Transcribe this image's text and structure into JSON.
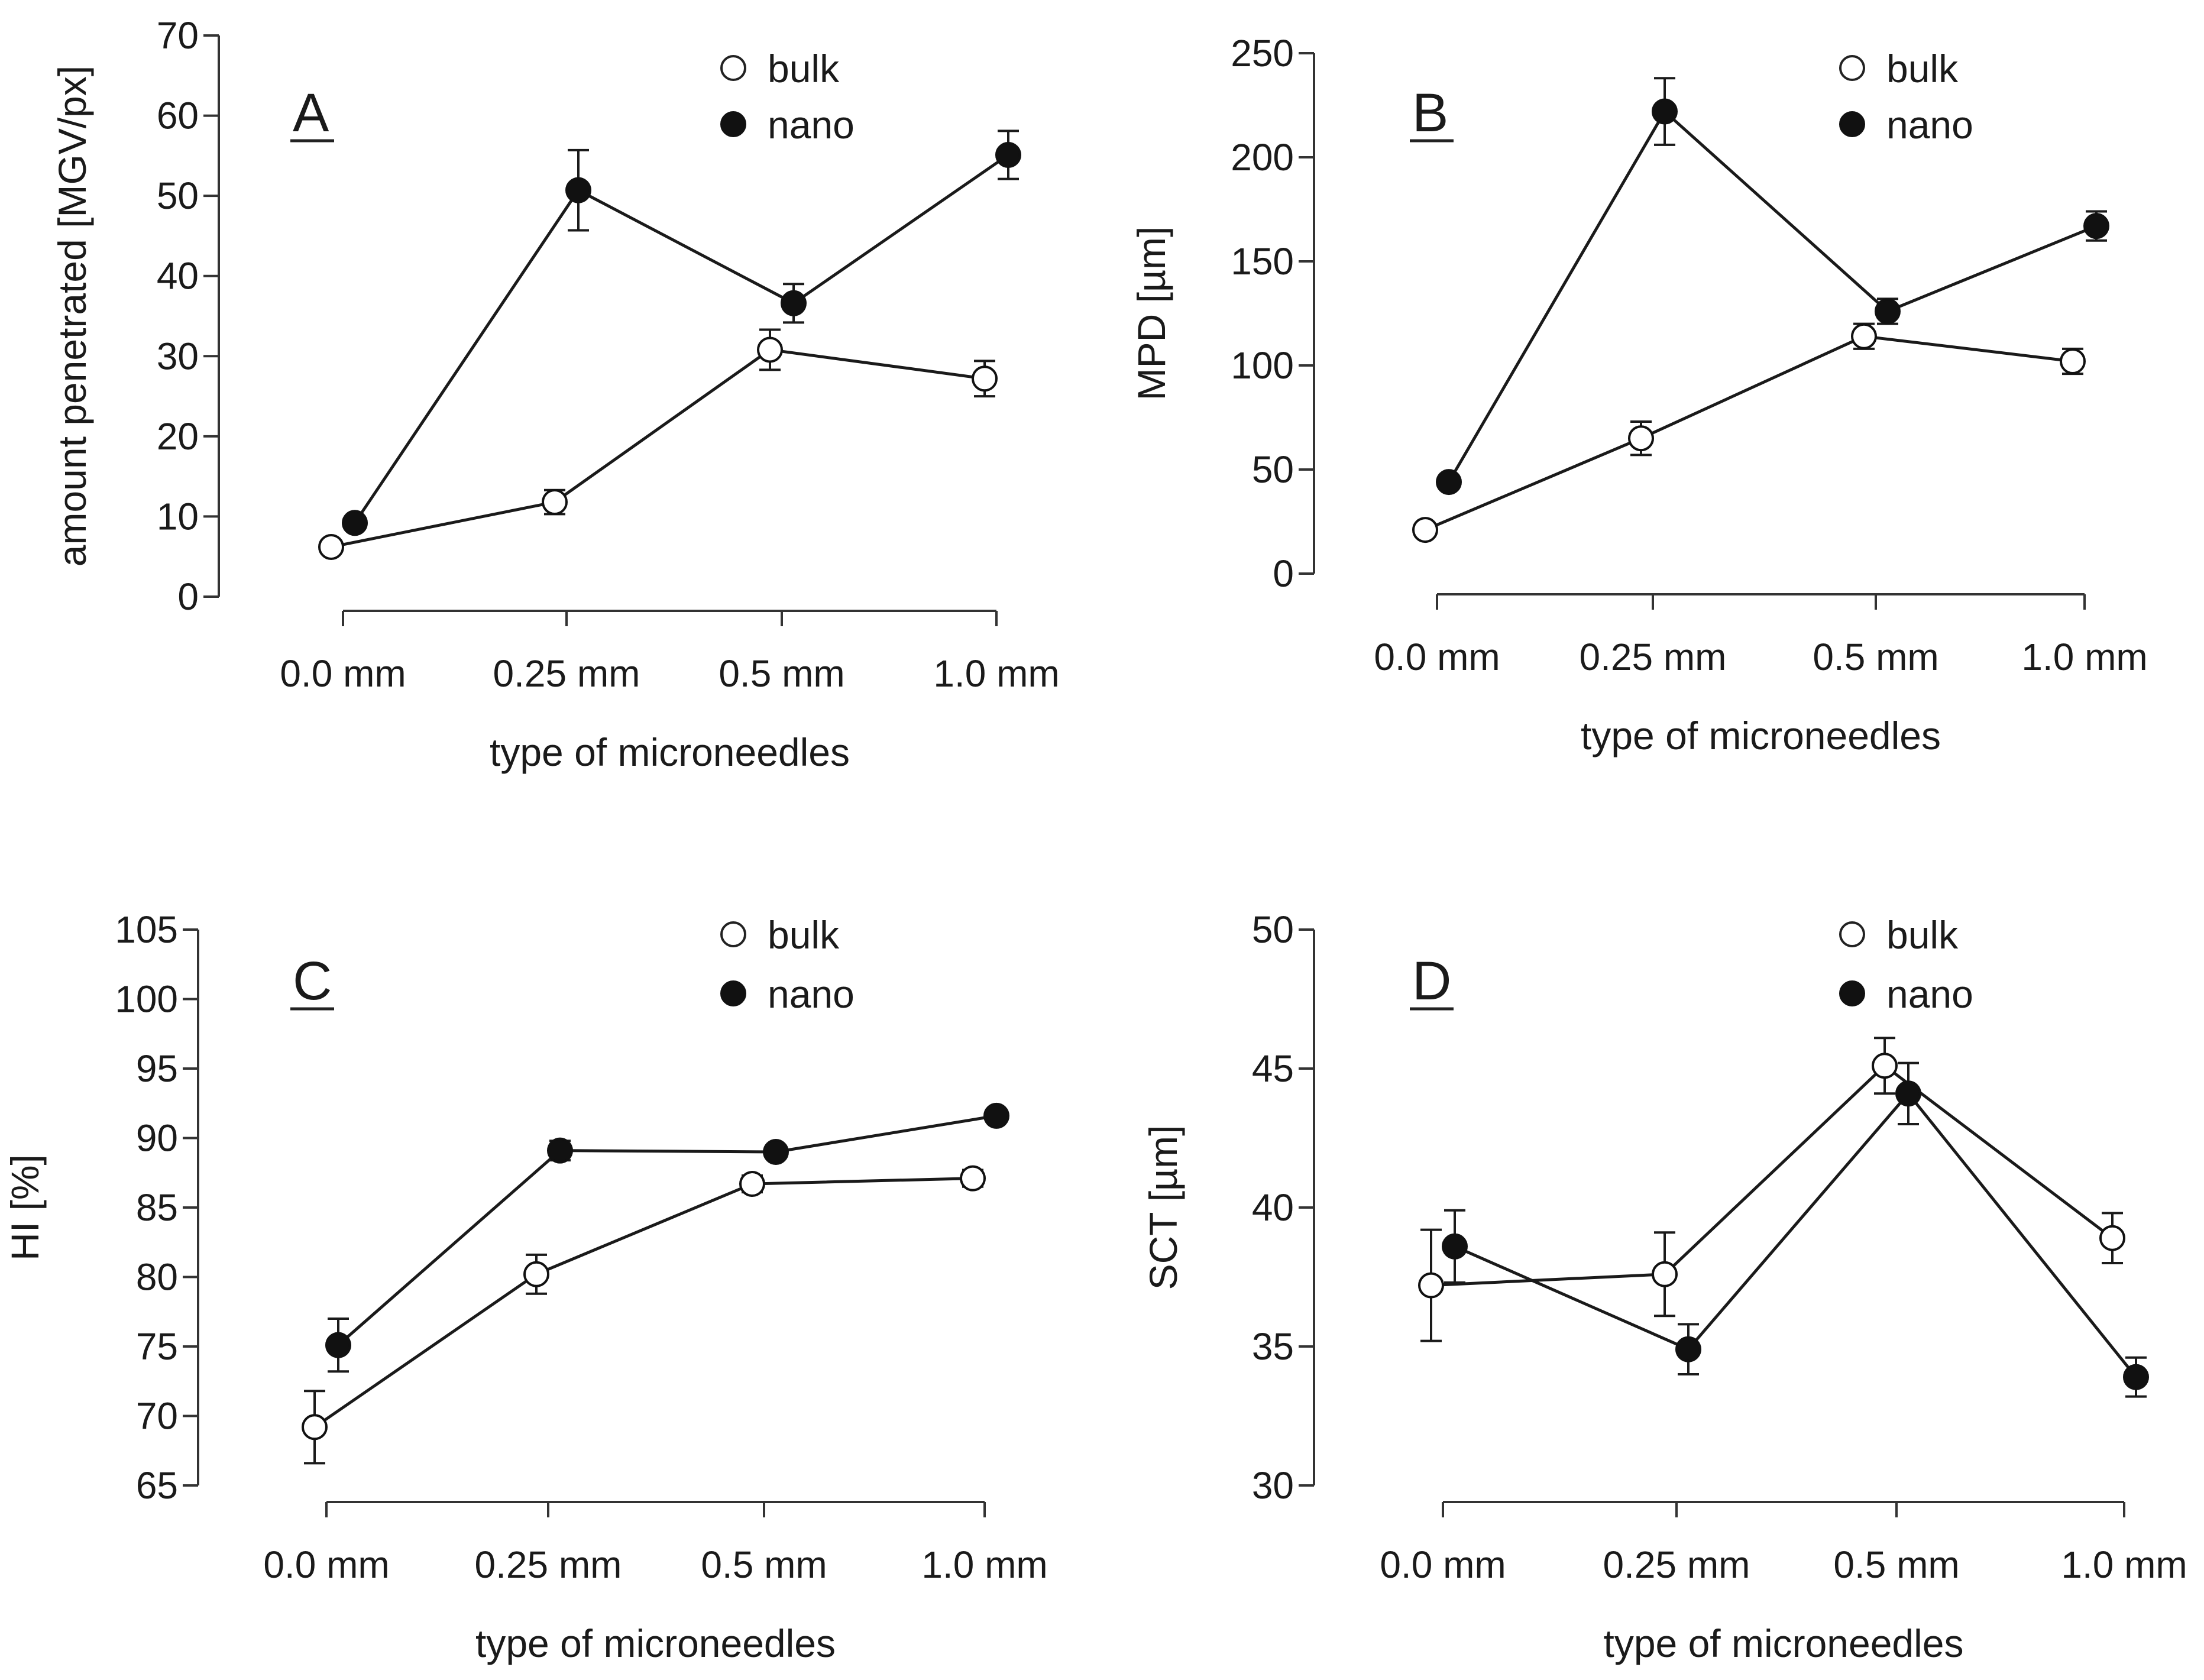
{
  "chart_data": [
    {
      "type": "line",
      "panel_label": "A",
      "xlabel": "type of microneedles",
      "ylabel": "amount penetrated [MGV/px]",
      "categories": [
        "0.0 mm",
        "0.25 mm",
        "0.5 mm",
        "1.0 mm"
      ],
      "ylim": [
        0,
        70
      ],
      "yticks": [
        0,
        10,
        20,
        30,
        40,
        50,
        60,
        70
      ],
      "legend": [
        "bulk",
        "nano"
      ],
      "legend_position": "top-right",
      "series": [
        {
          "name": "bulk",
          "marker": "open-circle",
          "values": [
            6.2,
            11.8,
            30.8,
            27.2
          ],
          "errors": [
            0.6,
            1.5,
            2.5,
            2.2
          ]
        },
        {
          "name": "nano",
          "marker": "filled-circle",
          "values": [
            9.2,
            50.7,
            36.6,
            55.1
          ],
          "errors": [
            0.7,
            5.0,
            2.4,
            3.0
          ]
        }
      ]
    },
    {
      "type": "line",
      "panel_label": "B",
      "xlabel": "type of microneedles",
      "ylabel": "MPD [µm]",
      "categories": [
        "0.0 mm",
        "0.25 mm",
        "0.5 mm",
        "1.0 mm"
      ],
      "ylim": [
        0,
        250
      ],
      "yticks": [
        0,
        50,
        100,
        150,
        200,
        250
      ],
      "legend": [
        "bulk",
        "nano"
      ],
      "legend_position": "top-right",
      "series": [
        {
          "name": "bulk",
          "marker": "open-circle",
          "values": [
            21,
            65,
            114,
            102
          ],
          "errors": [
            2,
            8,
            6,
            6
          ]
        },
        {
          "name": "nano",
          "marker": "filled-circle",
          "values": [
            44,
            222,
            126,
            167
          ],
          "errors": [
            3,
            16,
            6,
            7
          ]
        }
      ]
    },
    {
      "type": "line",
      "panel_label": "C",
      "xlabel": "type of microneedles",
      "ylabel": "HI [%]",
      "categories": [
        "0.0 mm",
        "0.25 mm",
        "0.5 mm",
        "1.0 mm"
      ],
      "ylim": [
        65,
        105
      ],
      "yticks": [
        65,
        70,
        75,
        80,
        85,
        90,
        95,
        100,
        105
      ],
      "legend": [
        "bulk",
        "nano"
      ],
      "legend_position": "top-right",
      "series": [
        {
          "name": "bulk",
          "marker": "open-circle",
          "values": [
            69.2,
            80.2,
            86.7,
            87.1
          ],
          "errors": [
            2.6,
            1.4,
            0.6,
            0.6
          ]
        },
        {
          "name": "nano",
          "marker": "filled-circle",
          "values": [
            75.1,
            89.1,
            89.0,
            91.6
          ],
          "errors": [
            1.9,
            0.7,
            0.4,
            0.4
          ]
        }
      ]
    },
    {
      "type": "line",
      "panel_label": "D",
      "xlabel": "type of microneedles",
      "ylabel": "SCT [µm]",
      "categories": [
        "0.0 mm",
        "0.25 mm",
        "0.5 mm",
        "1.0 mm"
      ],
      "ylim": [
        30,
        50
      ],
      "yticks": [
        30,
        35,
        40,
        45,
        50
      ],
      "legend": [
        "bulk",
        "nano"
      ],
      "legend_position": "top-right",
      "series": [
        {
          "name": "bulk",
          "marker": "open-circle",
          "values": [
            37.2,
            37.6,
            45.1,
            38.9
          ],
          "errors": [
            2.0,
            1.5,
            1.0,
            0.9
          ]
        },
        {
          "name": "nano",
          "marker": "filled-circle",
          "values": [
            38.6,
            34.9,
            44.1,
            33.9
          ],
          "errors": [
            1.3,
            0.9,
            1.1,
            0.7
          ]
        }
      ]
    }
  ]
}
